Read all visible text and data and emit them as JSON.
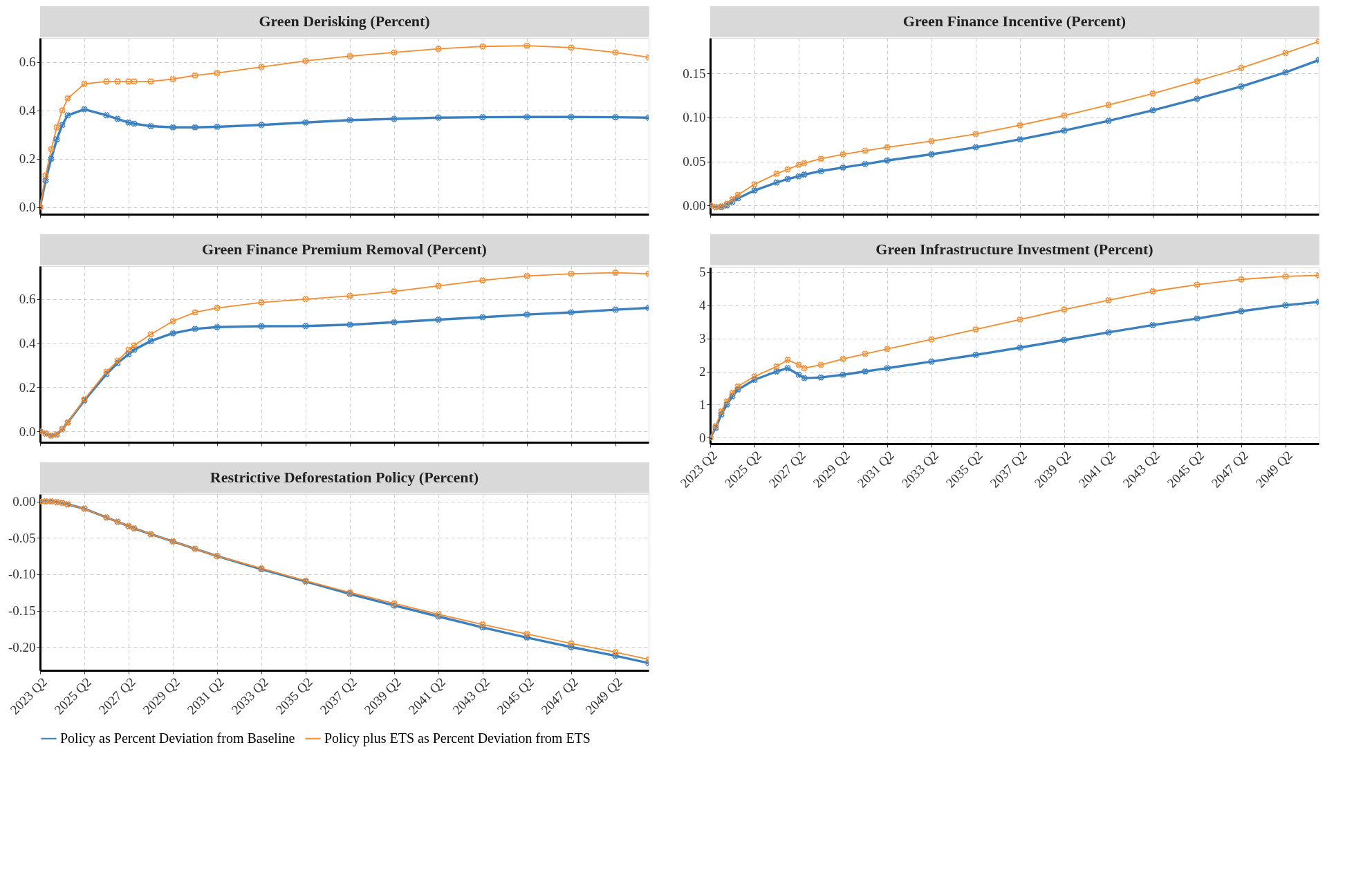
{
  "chart_data": [
    {
      "type": "line",
      "title": "Green Derisking (Percent)",
      "legend": "bottom",
      "grid": true,
      "marker": "cross",
      "line_style": "solid",
      "tick_labels": "y",
      "x": [
        "2023-04",
        "2023-07",
        "2023-10",
        "2024-01",
        "2024-04",
        "2024-07",
        "2025-04",
        "2026-04",
        "2026-10",
        "2027-04",
        "2027-07",
        "2028-04",
        "2029-04",
        "2030-04",
        "2031-04",
        "2033-04",
        "2035-04",
        "2037-04",
        "2039-04",
        "2041-04",
        "2043-04",
        "2045-04",
        "2047-04",
        "2049-04",
        "2050-10"
      ],
      "xlim": [
        "2023-04",
        "2050-10"
      ],
      "xticks": [
        {
          "value": "2023-04",
          "label": "2023 Q2"
        },
        {
          "value": "2025-04",
          "label": "2025 Q2"
        },
        {
          "value": "2027-04",
          "label": "2027 Q2"
        },
        {
          "value": "2029-04",
          "label": "2029 Q2"
        },
        {
          "value": "2031-04",
          "label": "2031 Q2"
        },
        {
          "value": "2033-04",
          "label": "2033 Q2"
        },
        {
          "value": "2035-04",
          "label": "2035 Q2"
        },
        {
          "value": "2037-04",
          "label": "2037 Q2"
        },
        {
          "value": "2039-04",
          "label": "2039 Q2"
        },
        {
          "value": "2041-04",
          "label": "2041 Q2"
        },
        {
          "value": "2043-04",
          "label": "2043 Q2"
        },
        {
          "value": "2045-04",
          "label": "2045 Q2"
        },
        {
          "value": "2047-04",
          "label": "2047 Q2"
        },
        {
          "value": "2049-04",
          "label": "2049 Q2"
        }
      ],
      "ylim": [
        -0.03,
        0.7
      ],
      "yticks": [
        {
          "value": 0,
          "label": "0.0"
        },
        0.2,
        0.4,
        0.6
      ],
      "series": [
        {
          "name": "Policy as Percent Deviation from Baseline",
          "color": "#3a80c0",
          "values": [
            0,
            0.11,
            0.2,
            0.28,
            0.34,
            0.38,
            0.405,
            0.38,
            0.365,
            0.35,
            0.345,
            0.335,
            0.33,
            0.33,
            0.332,
            0.34,
            0.35,
            0.36,
            0.365,
            0.37,
            0.372,
            0.373,
            0.373,
            0.372,
            0.37
          ]
        },
        {
          "name": "Policy plus ETS as Percent Deviation from ETS",
          "color": "#f78a2a",
          "values": [
            0,
            0.13,
            0.24,
            0.33,
            0.4,
            0.45,
            0.51,
            0.52,
            0.52,
            0.52,
            0.52,
            0.52,
            0.53,
            0.545,
            0.555,
            0.58,
            0.605,
            0.625,
            0.64,
            0.655,
            0.665,
            0.668,
            0.66,
            0.64,
            0.62
          ]
        }
      ]
    },
    {
      "type": "line",
      "title": "Green Finance Incentive (Percent)",
      "grid": true,
      "marker": "cross",
      "line_style": "solid",
      "tick_labels": "y",
      "x": [
        "2023-04",
        "2023-07",
        "2023-10",
        "2024-01",
        "2024-04",
        "2024-07",
        "2025-04",
        "2026-04",
        "2026-10",
        "2027-04",
        "2027-07",
        "2028-04",
        "2029-04",
        "2030-04",
        "2031-04",
        "2033-04",
        "2035-04",
        "2037-04",
        "2039-04",
        "2041-04",
        "2043-04",
        "2045-04",
        "2047-04",
        "2049-04",
        "2050-10"
      ],
      "xlim": [
        "2023-04",
        "2050-10"
      ],
      "xticks": [
        {
          "value": "2023-04",
          "label": "2023 Q2"
        },
        {
          "value": "2025-04",
          "label": "2025 Q2"
        },
        {
          "value": "2027-04",
          "label": "2027 Q2"
        },
        {
          "value": "2029-04",
          "label": "2029 Q2"
        },
        {
          "value": "2031-04",
          "label": "2031 Q2"
        },
        {
          "value": "2033-04",
          "label": "2033 Q2"
        },
        {
          "value": "2035-04",
          "label": "2035 Q2"
        },
        {
          "value": "2037-04",
          "label": "2037 Q2"
        },
        {
          "value": "2039-04",
          "label": "2039 Q2"
        },
        {
          "value": "2041-04",
          "label": "2041 Q2"
        },
        {
          "value": "2043-04",
          "label": "2043 Q2"
        },
        {
          "value": "2045-04",
          "label": "2045 Q2"
        },
        {
          "value": "2047-04",
          "label": "2047 Q2"
        },
        {
          "value": "2049-04",
          "label": "2049 Q2"
        }
      ],
      "ylim": [
        -0.01,
        0.19
      ],
      "yticks": [
        {
          "value": 0,
          "label": "0.00"
        },
        0.05,
        {
          "value": 0.1,
          "label": "0.10"
        },
        0.15
      ],
      "series": [
        {
          "name": "Policy as Percent Deviation from Baseline",
          "color": "#3a80c0",
          "values": [
            0,
            -0.002,
            -0.002,
            0,
            0.004,
            0.008,
            0.017,
            0.026,
            0.03,
            0.033,
            0.035,
            0.039,
            0.043,
            0.047,
            0.051,
            0.058,
            0.066,
            0.075,
            0.085,
            0.096,
            0.108,
            0.121,
            0.135,
            0.151,
            0.165
          ]
        },
        {
          "name": "Policy plus ETS as Percent Deviation from ETS",
          "color": "#f78a2a",
          "values": [
            0,
            -0.002,
            -0.001,
            0.002,
            0.007,
            0.012,
            0.024,
            0.036,
            0.041,
            0.046,
            0.048,
            0.053,
            0.058,
            0.062,
            0.066,
            0.073,
            0.081,
            0.091,
            0.102,
            0.114,
            0.127,
            0.141,
            0.156,
            0.173,
            0.186
          ]
        }
      ]
    },
    {
      "type": "line",
      "title": "Green Finance Premium Removal (Percent)",
      "grid": true,
      "marker": "cross",
      "line_style": "solid",
      "tick_labels": "y",
      "x": [
        "2023-04",
        "2023-07",
        "2023-10",
        "2024-01",
        "2024-04",
        "2024-07",
        "2025-04",
        "2026-04",
        "2026-10",
        "2027-04",
        "2027-07",
        "2028-04",
        "2029-04",
        "2030-04",
        "2031-04",
        "2033-04",
        "2035-04",
        "2037-04",
        "2039-04",
        "2041-04",
        "2043-04",
        "2045-04",
        "2047-04",
        "2049-04",
        "2050-10"
      ],
      "xlim": [
        "2023-04",
        "2050-10"
      ],
      "xticks": [
        {
          "value": "2023-04",
          "label": "2023 Q2"
        },
        {
          "value": "2025-04",
          "label": "2025 Q2"
        },
        {
          "value": "2027-04",
          "label": "2027 Q2"
        },
        {
          "value": "2029-04",
          "label": "2029 Q2"
        },
        {
          "value": "2031-04",
          "label": "2031 Q2"
        },
        {
          "value": "2033-04",
          "label": "2033 Q2"
        },
        {
          "value": "2035-04",
          "label": "2035 Q2"
        },
        {
          "value": "2037-04",
          "label": "2037 Q2"
        },
        {
          "value": "2039-04",
          "label": "2039 Q2"
        },
        {
          "value": "2041-04",
          "label": "2041 Q2"
        },
        {
          "value": "2043-04",
          "label": "2043 Q2"
        },
        {
          "value": "2045-04",
          "label": "2045 Q2"
        },
        {
          "value": "2047-04",
          "label": "2047 Q2"
        },
        {
          "value": "2049-04",
          "label": "2049 Q2"
        }
      ],
      "ylim": [
        -0.05,
        0.75
      ],
      "yticks": [
        {
          "value": 0,
          "label": "0.0"
        },
        0.2,
        0.4,
        0.6
      ],
      "series": [
        {
          "name": "Policy as Percent Deviation from Baseline",
          "color": "#3a80c0",
          "values": [
            0,
            -0.01,
            -0.02,
            -0.015,
            0.01,
            0.04,
            0.14,
            0.26,
            0.31,
            0.35,
            0.37,
            0.41,
            0.445,
            0.465,
            0.473,
            0.477,
            0.478,
            0.484,
            0.495,
            0.507,
            0.518,
            0.53,
            0.54,
            0.552,
            0.56
          ]
        },
        {
          "name": "Policy plus ETS as Percent Deviation from ETS",
          "color": "#f78a2a",
          "values": [
            0,
            -0.01,
            -0.02,
            -0.015,
            0.01,
            0.04,
            0.145,
            0.27,
            0.32,
            0.37,
            0.39,
            0.44,
            0.5,
            0.54,
            0.56,
            0.585,
            0.6,
            0.615,
            0.635,
            0.66,
            0.685,
            0.705,
            0.715,
            0.72,
            0.715
          ]
        }
      ]
    },
    {
      "type": "line",
      "title": "Green Infrastructure Investment (Percent)",
      "grid": true,
      "marker": "cross",
      "line_style": "solid",
      "x": [
        "2023-04",
        "2023-07",
        "2023-10",
        "2024-01",
        "2024-04",
        "2024-07",
        "2025-04",
        "2026-04",
        "2026-10",
        "2027-04",
        "2027-07",
        "2028-04",
        "2029-04",
        "2030-04",
        "2031-04",
        "2033-04",
        "2035-04",
        "2037-04",
        "2039-04",
        "2041-04",
        "2043-04",
        "2045-04",
        "2047-04",
        "2049-04",
        "2050-10"
      ],
      "xlim": [
        "2023-04",
        "2050-10"
      ],
      "xticks": [
        {
          "value": "2023-04",
          "label": "2023 Q2"
        },
        {
          "value": "2025-04",
          "label": "2025 Q2"
        },
        {
          "value": "2027-04",
          "label": "2027 Q2"
        },
        {
          "value": "2029-04",
          "label": "2029 Q2"
        },
        {
          "value": "2031-04",
          "label": "2031 Q2"
        },
        {
          "value": "2033-04",
          "label": "2033 Q2"
        },
        {
          "value": "2035-04",
          "label": "2035 Q2"
        },
        {
          "value": "2037-04",
          "label": "2037 Q2"
        },
        {
          "value": "2039-04",
          "label": "2039 Q2"
        },
        {
          "value": "2041-04",
          "label": "2041 Q2"
        },
        {
          "value": "2043-04",
          "label": "2043 Q2"
        },
        {
          "value": "2045-04",
          "label": "2045 Q2"
        },
        {
          "value": "2047-04",
          "label": "2047 Q2"
        },
        {
          "value": "2049-04",
          "label": "2049 Q2"
        }
      ],
      "ylim": [
        -0.18,
        5.14
      ],
      "yticks": [
        0,
        1,
        2,
        3,
        4,
        5
      ],
      "series": [
        {
          "name": "Policy as Percent Deviation from Baseline",
          "color": "#3a80c0",
          "values": [
            0,
            0.3,
            0.7,
            1.0,
            1.25,
            1.45,
            1.75,
            2.0,
            2.1,
            1.9,
            1.8,
            1.82,
            1.9,
            2.0,
            2.1,
            2.3,
            2.5,
            2.72,
            2.95,
            3.18,
            3.4,
            3.6,
            3.82,
            4.0,
            4.1
          ]
        },
        {
          "name": "Policy plus ETS as Percent Deviation from ETS",
          "color": "#f78a2a",
          "values": [
            0,
            0.35,
            0.8,
            1.1,
            1.35,
            1.55,
            1.85,
            2.15,
            2.35,
            2.2,
            2.1,
            2.2,
            2.38,
            2.53,
            2.68,
            2.97,
            3.27,
            3.57,
            3.87,
            4.15,
            4.42,
            4.62,
            4.78,
            4.87,
            4.9
          ]
        }
      ]
    },
    {
      "type": "line",
      "title": "Restrictive Deforestation Policy (Percent)",
      "grid": true,
      "marker": "cross",
      "line_style": "solid",
      "x": [
        "2023-04",
        "2023-07",
        "2023-10",
        "2024-01",
        "2024-04",
        "2024-07",
        "2025-04",
        "2026-04",
        "2026-10",
        "2027-04",
        "2027-07",
        "2028-04",
        "2029-04",
        "2030-04",
        "2031-04",
        "2033-04",
        "2035-04",
        "2037-04",
        "2039-04",
        "2041-04",
        "2043-04",
        "2045-04",
        "2047-04",
        "2049-04",
        "2050-10"
      ],
      "xlim": [
        "2023-04",
        "2050-10"
      ],
      "xticks": [
        {
          "value": "2023-04",
          "label": "2023 Q2"
        },
        {
          "value": "2025-04",
          "label": "2025 Q2"
        },
        {
          "value": "2027-04",
          "label": "2027 Q2"
        },
        {
          "value": "2029-04",
          "label": "2029 Q2"
        },
        {
          "value": "2031-04",
          "label": "2031 Q2"
        },
        {
          "value": "2033-04",
          "label": "2033 Q2"
        },
        {
          "value": "2035-04",
          "label": "2035 Q2"
        },
        {
          "value": "2037-04",
          "label": "2037 Q2"
        },
        {
          "value": "2039-04",
          "label": "2039 Q2"
        },
        {
          "value": "2041-04",
          "label": "2041 Q2"
        },
        {
          "value": "2043-04",
          "label": "2043 Q2"
        },
        {
          "value": "2045-04",
          "label": "2045 Q2"
        },
        {
          "value": "2047-04",
          "label": "2047 Q2"
        },
        {
          "value": "2049-04",
          "label": "2049 Q2"
        }
      ],
      "ylim": [
        -0.232,
        0.01
      ],
      "yticks": [
        {
          "value": 0,
          "label": "0.00"
        },
        -0.05,
        {
          "value": -0.1,
          "label": "-0.10"
        },
        -0.15,
        {
          "value": -0.2,
          "label": "-0.20"
        }
      ],
      "series": [
        {
          "name": "Policy as Percent Deviation from Baseline",
          "color": "#3a80c0",
          "values": [
            0,
            0,
            0,
            -0.001,
            -0.002,
            -0.004,
            -0.01,
            -0.022,
            -0.028,
            -0.034,
            -0.037,
            -0.045,
            -0.055,
            -0.065,
            -0.075,
            -0.093,
            -0.11,
            -0.127,
            -0.143,
            -0.158,
            -0.173,
            -0.187,
            -0.2,
            -0.212,
            -0.222
          ]
        },
        {
          "name": "Policy plus ETS as Percent Deviation from ETS",
          "color": "#f78a2a",
          "values": [
            0,
            0,
            0,
            -0.001,
            -0.002,
            -0.004,
            -0.01,
            -0.022,
            -0.028,
            -0.034,
            -0.037,
            -0.045,
            -0.055,
            -0.065,
            -0.075,
            -0.092,
            -0.109,
            -0.125,
            -0.14,
            -0.155,
            -0.169,
            -0.182,
            -0.195,
            -0.207,
            -0.217
          ]
        }
      ]
    }
  ]
}
